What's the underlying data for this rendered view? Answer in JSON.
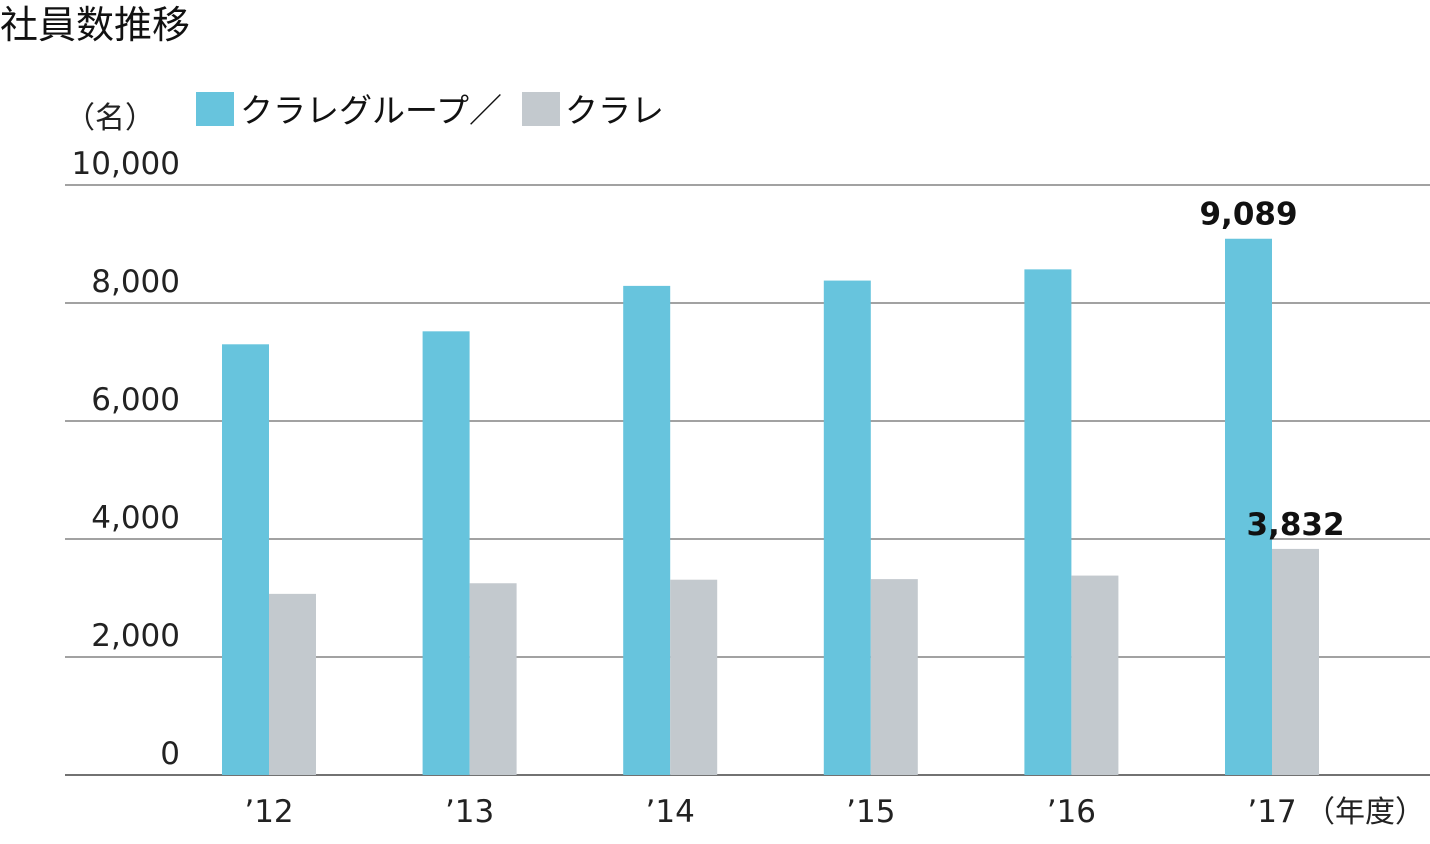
{
  "chart_data": {
    "type": "bar",
    "title": "社員数推移",
    "ylabel": "（名）",
    "xlabel": "（年度）",
    "categories": [
      "’12",
      "’13",
      "’14",
      "’15",
      "’16",
      "’17"
    ],
    "series": [
      {
        "name": "クラレグループ／",
        "color": "#67c4dd",
        "values": [
          7300,
          7520,
          8290,
          8380,
          8570,
          9089
        ]
      },
      {
        "name": "クラレ",
        "color": "#c3c9ce",
        "values": [
          3070,
          3250,
          3310,
          3320,
          3380,
          3832
        ]
      }
    ],
    "yticks": [
      0,
      2000,
      4000,
      6000,
      8000,
      10000
    ],
    "ytick_labels": [
      "0",
      "2,000",
      "4,000",
      "6,000",
      "8,000",
      "10,000"
    ],
    "ylim": [
      0,
      10000
    ],
    "grid": true,
    "legend": "top-left",
    "annotations": [
      {
        "series": 0,
        "category": 5,
        "text": "9,089"
      },
      {
        "series": 1,
        "category": 5,
        "text": "3,832"
      }
    ]
  }
}
